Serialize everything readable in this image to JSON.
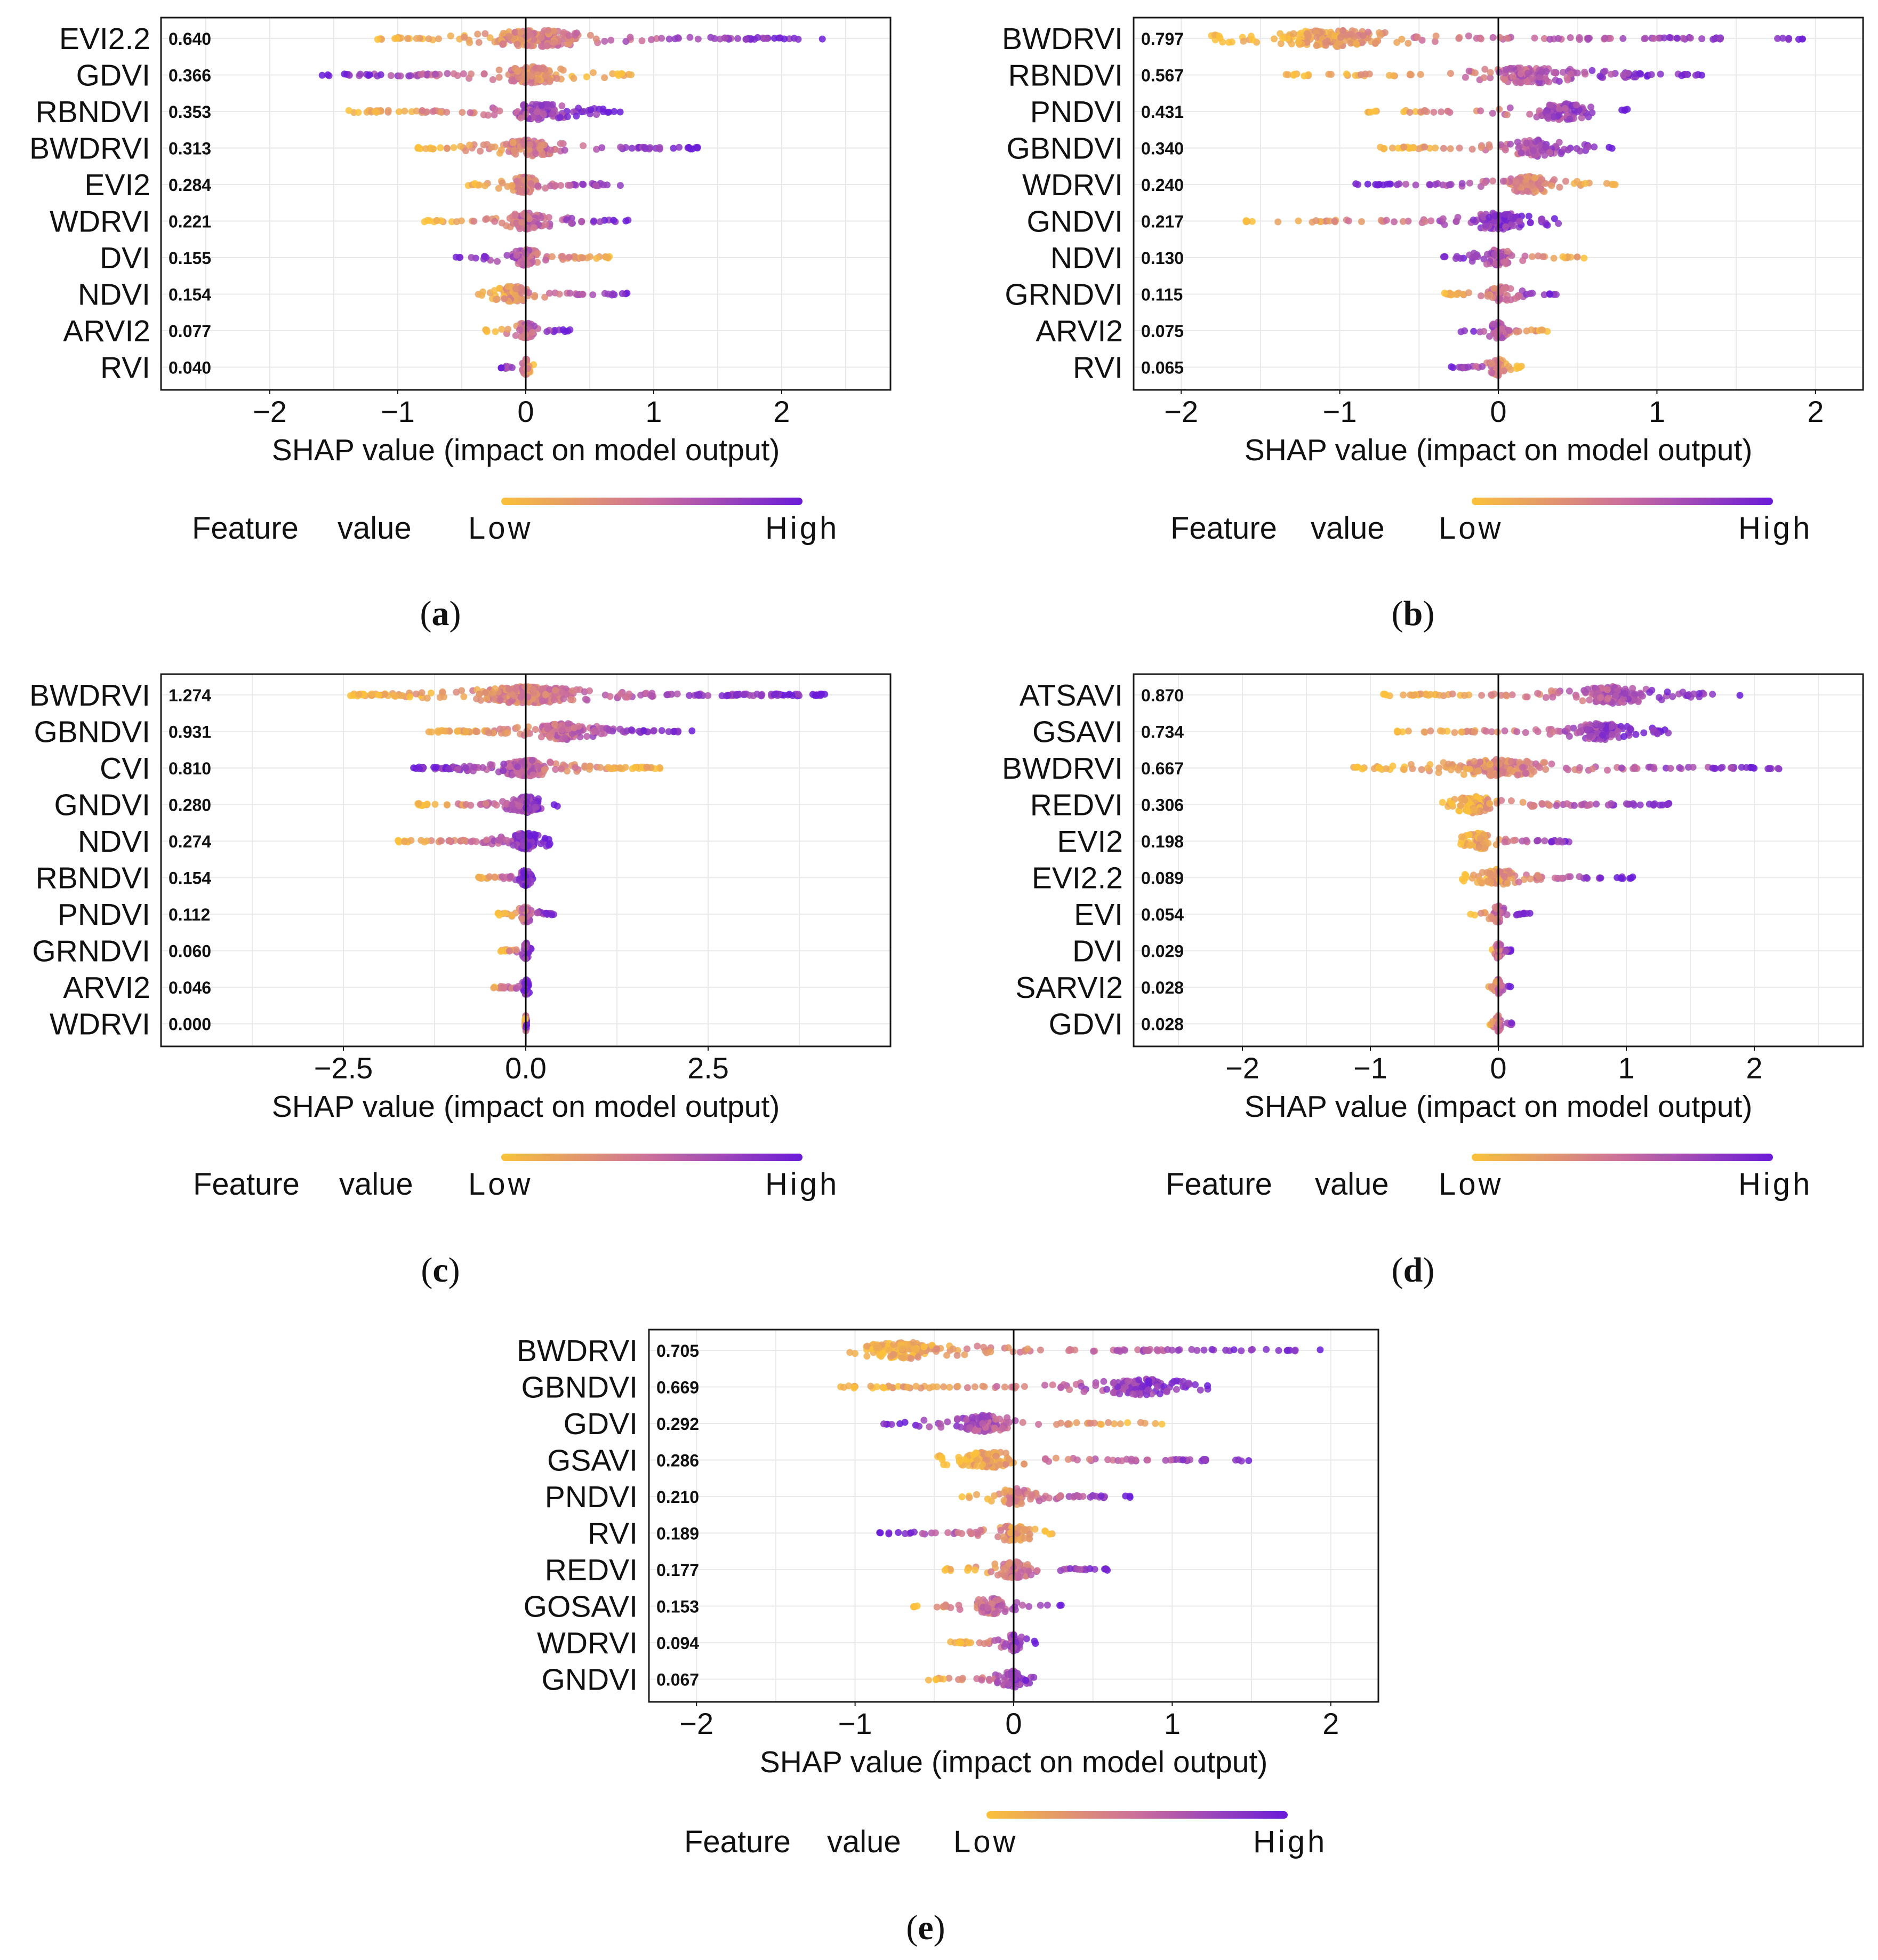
{
  "figure": {
    "axis_label": "SHAP value (impact on model output)",
    "legend": {
      "feature": "Feature",
      "value": "value",
      "low": "Low",
      "high": "High"
    },
    "colors": {
      "low": "#fbc13a",
      "mid": "#cc6e9c",
      "high": "#6a1bd8",
      "zero_line": "#000000",
      "grid": "#e9e9e9"
    }
  },
  "chart_data": [
    {
      "type": "scatter",
      "id": "a",
      "caption": "(a)",
      "xlabel": "SHAP value (impact on model output)",
      "xlim": [
        -2.85,
        2.85
      ],
      "xticks": [
        -2,
        -1,
        0,
        1,
        2
      ],
      "xtick_labels": [
        "−2",
        "−1",
        "0",
        "1",
        "2"
      ],
      "features": [
        {
          "name": "EVI2.2",
          "value": "0.640",
          "range": [
            -1.2,
            2.35
          ],
          "skew": 1,
          "cluster": 0.1
        },
        {
          "name": "GDVI",
          "value": "0.366",
          "range": [
            -1.65,
            0.85
          ],
          "skew": -1,
          "cluster": 0.05
        },
        {
          "name": "RBNDVI",
          "value": "0.353",
          "range": [
            -1.4,
            0.75
          ],
          "skew": 1,
          "cluster": 0.1
        },
        {
          "name": "BWDRVI",
          "value": "0.313",
          "range": [
            -0.85,
            1.35
          ],
          "skew": 1,
          "cluster": 0.0
        },
        {
          "name": "EVI2",
          "value": "0.284",
          "range": [
            -0.45,
            0.8
          ],
          "skew": 1,
          "cluster": 0.0
        },
        {
          "name": "WDRVI",
          "value": "0.221",
          "range": [
            -0.8,
            0.8
          ],
          "skew": 1,
          "cluster": 0.0
        },
        {
          "name": "DVI",
          "value": "0.155",
          "range": [
            -0.55,
            0.7
          ],
          "skew": -1,
          "cluster": 0.0
        },
        {
          "name": "NDVI",
          "value": "0.154",
          "range": [
            -0.4,
            0.8
          ],
          "skew": 1,
          "cluster": -0.1
        },
        {
          "name": "ARVI2",
          "value": "0.077",
          "range": [
            -0.35,
            0.35
          ],
          "skew": 1,
          "cluster": 0.0
        },
        {
          "name": "RVI",
          "value": "0.040",
          "range": [
            -0.2,
            0.1
          ],
          "skew": -1,
          "cluster": 0.0
        }
      ]
    },
    {
      "type": "scatter",
      "id": "b",
      "caption": "(b)",
      "xlabel": "SHAP value (impact on model output)",
      "xlim": [
        -2.3,
        2.3
      ],
      "xticks": [
        -2,
        -1,
        0,
        1,
        2
      ],
      "xtick_labels": [
        "−2",
        "−1",
        "0",
        "1",
        "2"
      ],
      "features": [
        {
          "name": "BWDRVI",
          "value": "0.797",
          "range": [
            -1.85,
            1.95
          ],
          "skew": 1,
          "cluster": -1.05
        },
        {
          "name": "RBNDVI",
          "value": "0.567",
          "range": [
            -1.35,
            1.3
          ],
          "skew": 1,
          "cluster": 0.2
        },
        {
          "name": "PNDVI",
          "value": "0.431",
          "range": [
            -0.85,
            0.9
          ],
          "skew": 1,
          "cluster": 0.4
        },
        {
          "name": "GBNDVI",
          "value": "0.340",
          "range": [
            -0.75,
            0.75
          ],
          "skew": 1,
          "cluster": 0.25
        },
        {
          "name": "WDRVI",
          "value": "0.240",
          "range": [
            -0.9,
            0.8
          ],
          "skew": -1,
          "cluster": 0.2
        },
        {
          "name": "GNDVI",
          "value": "0.217",
          "range": [
            -1.6,
            0.4
          ],
          "skew": 1,
          "cluster": 0.0
        },
        {
          "name": "NDVI",
          "value": "0.130",
          "range": [
            -0.35,
            0.6
          ],
          "skew": -1,
          "cluster": 0.0
        },
        {
          "name": "GRNDVI",
          "value": "0.115",
          "range": [
            -0.35,
            0.4
          ],
          "skew": 1,
          "cluster": 0.0
        },
        {
          "name": "ARVI2",
          "value": "0.075",
          "range": [
            -0.25,
            0.35
          ],
          "skew": -1,
          "cluster": 0.0
        },
        {
          "name": "RVI",
          "value": "0.065",
          "range": [
            -0.3,
            0.15
          ],
          "skew": -1,
          "cluster": 0.0
        }
      ]
    },
    {
      "type": "scatter",
      "id": "c",
      "caption": "(c)",
      "xlabel": "SHAP value (impact on model output)",
      "xlim": [
        -5.0,
        5.0
      ],
      "xticks": [
        -2.5,
        0,
        2.5
      ],
      "xtick_labels": [
        "−2.5",
        "0.0",
        "2.5"
      ],
      "features": [
        {
          "name": "BWDRVI",
          "value": "1.274",
          "range": [
            -2.45,
            4.1
          ],
          "skew": 1,
          "cluster": 0.0
        },
        {
          "name": "GBNDVI",
          "value": "0.931",
          "range": [
            -1.35,
            2.3
          ],
          "skew": 1,
          "cluster": 0.5
        },
        {
          "name": "CVI",
          "value": "0.810",
          "range": [
            -1.55,
            1.95
          ],
          "skew": -1,
          "cluster": 0.0
        },
        {
          "name": "GNDVI",
          "value": "0.280",
          "range": [
            -1.5,
            0.45
          ],
          "skew": 1,
          "cluster": 0.0
        },
        {
          "name": "NDVI",
          "value": "0.274",
          "range": [
            -1.8,
            0.35
          ],
          "skew": 1,
          "cluster": 0.0
        },
        {
          "name": "RBNDVI",
          "value": "0.154",
          "range": [
            -0.65,
            0.1
          ],
          "skew": 1,
          "cluster": 0.0
        },
        {
          "name": "PNDVI",
          "value": "0.112",
          "range": [
            -0.4,
            0.4
          ],
          "skew": 1,
          "cluster": 0.0
        },
        {
          "name": "GRNDVI",
          "value": "0.060",
          "range": [
            -0.35,
            0.1
          ],
          "skew": 1,
          "cluster": 0.0
        },
        {
          "name": "ARVI2",
          "value": "0.046",
          "range": [
            -0.45,
            0.05
          ],
          "skew": 1,
          "cluster": 0.0
        },
        {
          "name": "WDRVI",
          "value": "0.000",
          "range": [
            -0.01,
            0.01
          ],
          "skew": 1,
          "cluster": 0.0
        }
      ]
    },
    {
      "type": "scatter",
      "id": "d",
      "caption": "(d)",
      "xlabel": "SHAP value (impact on model output)",
      "xlim": [
        -2.85,
        2.85
      ],
      "xticks": [
        -2,
        -1,
        0,
        1,
        2
      ],
      "xtick_labels": [
        "−2",
        "−1",
        "0",
        "1",
        "2"
      ],
      "features": [
        {
          "name": "ATSAVI",
          "value": "0.870",
          "range": [
            -0.9,
            1.95
          ],
          "skew": 1,
          "cluster": 0.9
        },
        {
          "name": "GSAVI",
          "value": "0.734",
          "range": [
            -0.8,
            1.35
          ],
          "skew": 1,
          "cluster": 0.8
        },
        {
          "name": "BWDRVI",
          "value": "0.667",
          "range": [
            -1.15,
            2.35
          ],
          "skew": 1,
          "cluster": 0.0
        },
        {
          "name": "REDVI",
          "value": "0.306",
          "range": [
            -0.45,
            1.35
          ],
          "skew": 1,
          "cluster": -0.2
        },
        {
          "name": "EVI2",
          "value": "0.198",
          "range": [
            -0.3,
            0.6
          ],
          "skew": 1,
          "cluster": -0.15
        },
        {
          "name": "EVI2.2",
          "value": "0.089",
          "range": [
            -0.3,
            1.05
          ],
          "skew": 1,
          "cluster": 0.0
        },
        {
          "name": "EVI",
          "value": "0.054",
          "range": [
            -0.25,
            0.25
          ],
          "skew": 1,
          "cluster": 0.0
        },
        {
          "name": "DVI",
          "value": "0.029",
          "range": [
            -0.08,
            0.1
          ],
          "skew": 1,
          "cluster": 0.0
        },
        {
          "name": "SARVI2",
          "value": "0.028",
          "range": [
            -0.08,
            0.1
          ],
          "skew": 1,
          "cluster": 0.0
        },
        {
          "name": "GDVI",
          "value": "0.028",
          "range": [
            -0.1,
            0.15
          ],
          "skew": 1,
          "cluster": 0.0
        }
      ]
    },
    {
      "type": "scatter",
      "id": "e",
      "caption": "(e)",
      "xlabel": "SHAP value (impact on model output)",
      "xlim": [
        -2.3,
        2.3
      ],
      "xticks": [
        -2,
        -1,
        0,
        1,
        2
      ],
      "xtick_labels": [
        "−2",
        "−1",
        "0",
        "1",
        "2"
      ],
      "features": [
        {
          "name": "BWDRVI",
          "value": "0.705",
          "range": [
            -1.05,
            1.95
          ],
          "skew": 1,
          "cluster": -0.7
        },
        {
          "name": "GBNDVI",
          "value": "0.669",
          "range": [
            -1.1,
            1.3
          ],
          "skew": 1,
          "cluster": 0.8
        },
        {
          "name": "GDVI",
          "value": "0.292",
          "range": [
            -0.85,
            0.95
          ],
          "skew": -1,
          "cluster": -0.2
        },
        {
          "name": "GSAVI",
          "value": "0.286",
          "range": [
            -0.5,
            1.5
          ],
          "skew": 1,
          "cluster": -0.15
        },
        {
          "name": "PNDVI",
          "value": "0.210",
          "range": [
            -0.35,
            0.75
          ],
          "skew": 1,
          "cluster": 0.0
        },
        {
          "name": "RVI",
          "value": "0.189",
          "range": [
            -0.85,
            0.25
          ],
          "skew": -1,
          "cluster": 0.0
        },
        {
          "name": "REDVI",
          "value": "0.177",
          "range": [
            -0.45,
            0.65
          ],
          "skew": 1,
          "cluster": 0.0
        },
        {
          "name": "GOSAVI",
          "value": "0.153",
          "range": [
            -0.65,
            0.35
          ],
          "skew": 1,
          "cluster": -0.15
        },
        {
          "name": "WDRVI",
          "value": "0.094",
          "range": [
            -0.4,
            0.15
          ],
          "skew": 1,
          "cluster": 0.0
        },
        {
          "name": "GNDVI",
          "value": "0.067",
          "range": [
            -0.55,
            0.2
          ],
          "skew": 1,
          "cluster": 0.0
        }
      ]
    }
  ]
}
